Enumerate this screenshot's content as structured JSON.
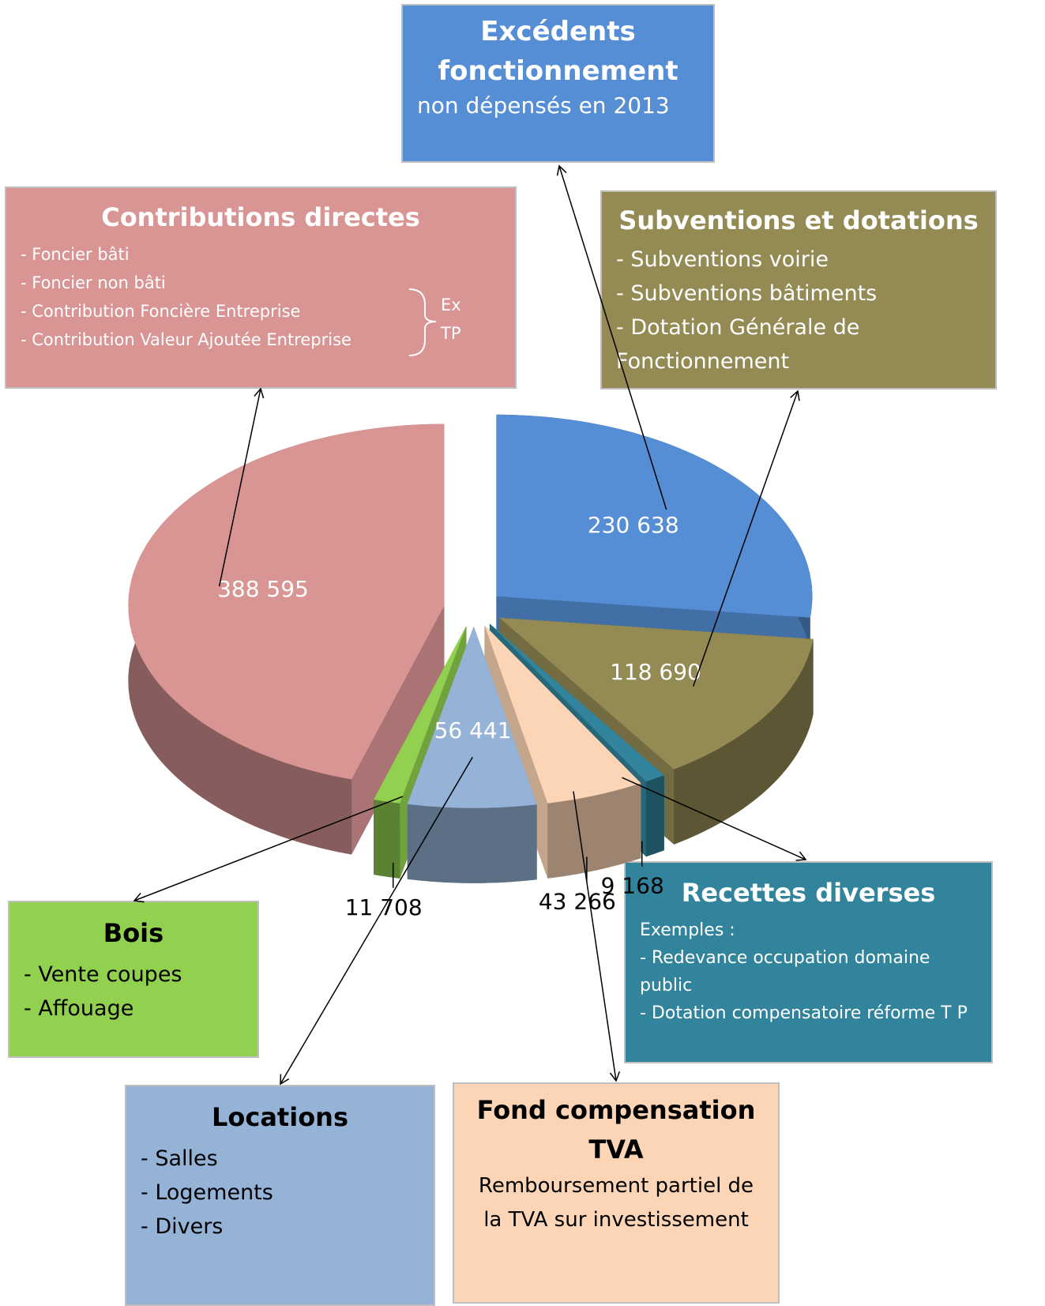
{
  "chart_data": {
    "type": "pie",
    "categories": [
      "Excédents fonctionnement",
      "Subventions et dotations",
      "Recettes diverses",
      "Fond compensation TVA",
      "Locations",
      "Bois",
      "Contributions directes"
    ],
    "values": [
      230638,
      118690,
      9168,
      43266,
      56441,
      11708,
      388595
    ],
    "value_labels": [
      "230 638",
      "118 690",
      "9 168",
      "43 266",
      "56 441",
      "11 708",
      "388 595"
    ],
    "colors": [
      "#558ed5",
      "#948a54",
      "#31849b",
      "#fbd5b5",
      "#95b3d7",
      "#92d050",
      "#d99594"
    ],
    "callouts": [
      {
        "lines": [
          "non dépensés en 2013"
        ]
      },
      {
        "lines": [
          "- Subventions voirie",
          "- Subventions bâtiments",
          "- Dotation Générale de Fonctionnement"
        ]
      },
      {
        "lines": [
          "Exemples :",
          "- Redevance occupation domaine public",
          "- Dotation compensatoire réforme T P"
        ]
      },
      {
        "lines": [
          "Remboursement partiel de la TVA sur investissement"
        ]
      },
      {
        "lines": [
          "- Salles",
          "- Logements",
          "- Divers"
        ]
      },
      {
        "lines": [
          "- Vente coupes",
          "- Affouage"
        ]
      },
      {
        "lines": [
          "- Foncier bâti",
          "- Foncier non bâti",
          "- Contribution Foncière Entreprise",
          "- Contribution Valeur Ajoutée Entreprise"
        ],
        "bracket": [
          "Ex",
          "TP"
        ]
      }
    ]
  }
}
